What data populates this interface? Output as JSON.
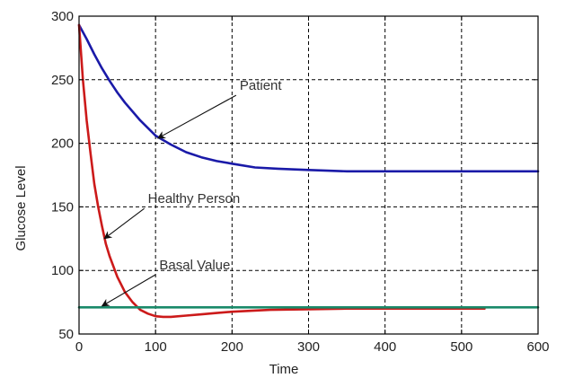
{
  "chart_data": {
    "type": "line",
    "title": "",
    "xlabel": "Time",
    "ylabel": "Glucose Level",
    "xlim": [
      0,
      600
    ],
    "ylim": [
      50,
      300
    ],
    "xticks": [
      0,
      100,
      200,
      300,
      400,
      500,
      600
    ],
    "yticks": [
      50,
      100,
      150,
      200,
      250,
      300
    ],
    "grid": true,
    "grid_style": "dashed",
    "series": [
      {
        "color": "#1a1aa8",
        "x": [
          0,
          10,
          20,
          30,
          40,
          50,
          60,
          80,
          100,
          120,
          140,
          160,
          180,
          200,
          230,
          260,
          300,
          350,
          400,
          450,
          500,
          550,
          600
        ],
        "y": [
          293,
          282,
          270,
          259,
          249,
          240,
          232,
          218,
          206,
          199,
          193,
          189,
          186,
          184,
          181,
          180,
          179,
          178,
          178,
          178,
          178,
          178,
          178
        ]
      },
      {
        "color": "#cc1a1a",
        "x": [
          0,
          5,
          10,
          15,
          20,
          25,
          30,
          35,
          40,
          50,
          60,
          70,
          80,
          90,
          100,
          110,
          120,
          140,
          160,
          180,
          200,
          250,
          300,
          350,
          400,
          450,
          500,
          530
        ],
        "y": [
          293,
          250,
          218,
          192,
          168,
          150,
          135,
          121,
          111,
          95,
          83,
          75,
          69,
          66,
          64,
          63.5,
          63.5,
          64.5,
          65.5,
          66.5,
          67.5,
          69,
          69.5,
          70,
          70,
          70,
          70,
          70
        ]
      },
      {
        "color": "#1a8a6a",
        "x": [
          0,
          600
        ],
        "y": [
          71,
          71
        ]
      }
    ],
    "annotations": [
      {
        "text": "Patient",
        "text_x": 210,
        "text_y": 242,
        "arrow_to_x": 103,
        "arrow_to_y": 204
      },
      {
        "text": "Healthy Person",
        "text_x": 90,
        "text_y": 153,
        "arrow_to_x": 33,
        "arrow_to_y": 125
      },
      {
        "text": "Basal Value",
        "text_x": 105,
        "text_y": 101,
        "arrow_to_x": 30,
        "arrow_to_y": 72
      }
    ]
  }
}
